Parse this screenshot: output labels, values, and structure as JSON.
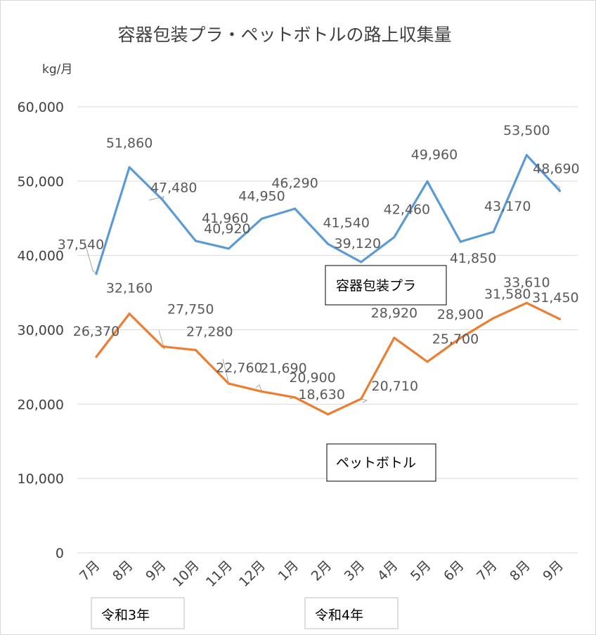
{
  "chart_data": {
    "type": "line",
    "title": "容器包装プラ・ペットボトルの路上収集量",
    "unit_label": "kg/月",
    "categories": [
      "7月",
      "8月",
      "9月",
      "10月",
      "11月",
      "12月",
      "1月",
      "2月",
      "3月",
      "4月",
      "5月",
      "6月",
      "7月",
      "8月",
      "9月"
    ],
    "era_labels": [
      "令和3年",
      "令和4年"
    ],
    "yticks": [
      "0",
      "10,000",
      "20,000",
      "30,000",
      "40,000",
      "50,000",
      "60,000"
    ],
    "ylim": [
      0,
      60000
    ],
    "grid": true,
    "series": [
      {
        "name": "容器包装プラ",
        "color": "#5b9bd5",
        "values": [
          37540,
          51860,
          47480,
          41960,
          40920,
          44950,
          46290,
          41540,
          39120,
          42460,
          49960,
          41850,
          43170,
          53500,
          48690
        ],
        "labels": [
          "37,540",
          "51,860",
          "47,480",
          "41,960",
          "40,920",
          "44,950",
          "46,290",
          "41,540",
          "39,120",
          "42,460",
          "49,960",
          "41,850",
          "43,170",
          "53,500",
          "48,690"
        ]
      },
      {
        "name": "ペットボトル",
        "color": "#ed7d31",
        "values": [
          26370,
          32160,
          27750,
          27280,
          22760,
          21690,
          20900,
          18630,
          20710,
          28920,
          25700,
          28900,
          31580,
          33610,
          31450
        ],
        "labels": [
          "26,370",
          "32,160",
          "27,750",
          "27,280",
          "22,760",
          "21,690",
          "20,900",
          "18,630",
          "20,710",
          "28,920",
          "25,700",
          "28,900",
          "31,580",
          "33,610",
          "31,450"
        ]
      }
    ]
  }
}
